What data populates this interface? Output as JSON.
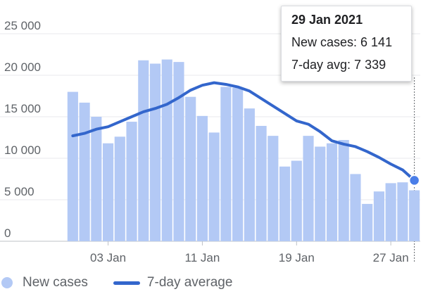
{
  "chart_data": {
    "type": "bar",
    "x": [
      "31 Dec 2020",
      "01 Jan 2021",
      "02 Jan 2021",
      "03 Jan 2021",
      "04 Jan 2021",
      "05 Jan 2021",
      "06 Jan 2021",
      "07 Jan 2021",
      "08 Jan 2021",
      "09 Jan 2021",
      "10 Jan 2021",
      "11 Jan 2021",
      "12 Jan 2021",
      "13 Jan 2021",
      "14 Jan 2021",
      "15 Jan 2021",
      "16 Jan 2021",
      "17 Jan 2021",
      "18 Jan 2021",
      "19 Jan 2021",
      "20 Jan 2021",
      "21 Jan 2021",
      "22 Jan 2021",
      "23 Jan 2021",
      "24 Jan 2021",
      "25 Jan 2021",
      "26 Jan 2021",
      "27 Jan 2021",
      "28 Jan 2021",
      "29 Jan 2021"
    ],
    "series": [
      {
        "name": "New cases",
        "type": "bar",
        "color": "#b3c9f5",
        "values": [
          18000,
          16700,
          15000,
          11800,
          12600,
          14400,
          21800,
          21400,
          21900,
          21600,
          17400,
          15100,
          13100,
          18600,
          18500,
          16000,
          13900,
          12700,
          9000,
          9700,
          12700,
          11400,
          11800,
          12200,
          8100,
          4500,
          6000,
          7000,
          7100,
          6141
        ]
      },
      {
        "name": "7-day average",
        "type": "line",
        "color": "#3366cc",
        "values": [
          12700,
          13000,
          13500,
          13800,
          14400,
          15000,
          15600,
          16000,
          16500,
          17300,
          18200,
          18800,
          19100,
          18900,
          18600,
          18100,
          17200,
          16300,
          15400,
          14500,
          14100,
          13200,
          12100,
          11700,
          11400,
          10800,
          10100,
          9300,
          8600,
          7339
        ]
      }
    ],
    "x_tick_labels": [
      "03 Jan",
      "11 Jan",
      "19 Jan",
      "27 Jan"
    ],
    "y_tick_labels": [
      "0",
      "5 000",
      "10 000",
      "15 000",
      "20 000",
      "25 000"
    ],
    "ylim": [
      0,
      25000
    ],
    "grid": true,
    "legend": "bottom-left",
    "tooltip": {
      "date": "29 Jan 2021",
      "new_cases": "New cases: 6 141",
      "avg": "7-day avg: 7 339"
    }
  },
  "legend": {
    "new_cases": "New cases",
    "avg": "7-day average"
  },
  "colors": {
    "bar": "#b3c9f5",
    "line": "#3366cc",
    "grid": "#e8eaed",
    "axis": "#5f6368"
  }
}
